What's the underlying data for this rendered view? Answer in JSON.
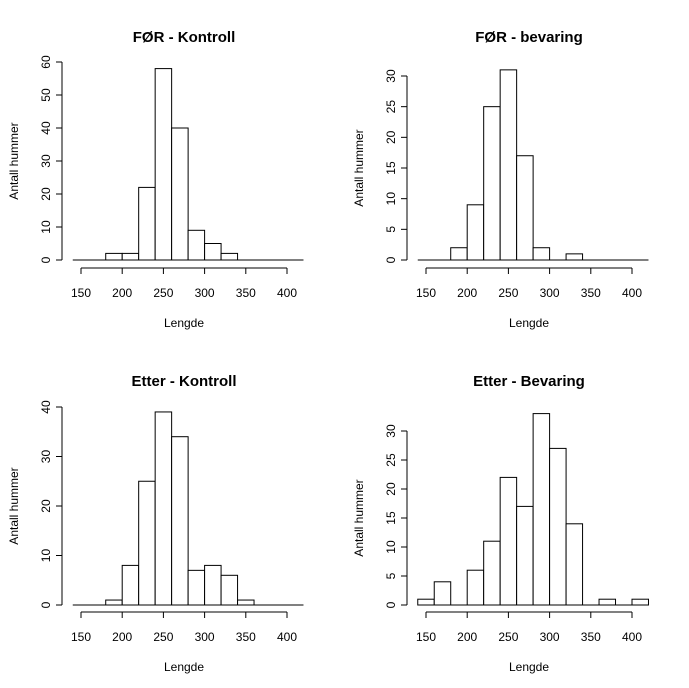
{
  "chart_data": [
    {
      "type": "bar",
      "title": "FØR - Kontroll",
      "xlabel": "Lengde",
      "ylabel": "Antall hummer",
      "bin_edges": [
        180,
        200,
        220,
        240,
        260,
        280,
        300,
        320,
        340
      ],
      "values": [
        2,
        2,
        22,
        58,
        40,
        9,
        5,
        2
      ],
      "xticks": [
        150,
        200,
        250,
        300,
        350,
        400
      ],
      "yticks": [
        0,
        10,
        20,
        30,
        40,
        50,
        60
      ],
      "xlim": [
        140,
        420
      ],
      "ylim": [
        0,
        60
      ]
    },
    {
      "type": "bar",
      "title": "FØR - bevaring",
      "xlabel": "Lengde",
      "ylabel": "Antall hummer",
      "bin_edges": [
        180,
        200,
        220,
        240,
        260,
        280,
        300,
        320,
        340
      ],
      "values": [
        2,
        9,
        25,
        31,
        17,
        2,
        0,
        1
      ],
      "xticks": [
        150,
        200,
        250,
        300,
        350,
        400
      ],
      "yticks": [
        0,
        5,
        10,
        15,
        20,
        25,
        30
      ],
      "xlim": [
        140,
        420
      ],
      "ylim": [
        0,
        30
      ]
    },
    {
      "type": "bar",
      "title": "Etter - Kontroll",
      "xlabel": "Lengde",
      "ylabel": "Antall hummer",
      "bin_edges": [
        180,
        200,
        220,
        240,
        260,
        280,
        300,
        320,
        340,
        360
      ],
      "values": [
        1,
        8,
        25,
        39,
        34,
        7,
        8,
        6,
        1
      ],
      "xticks": [
        150,
        200,
        250,
        300,
        350,
        400
      ],
      "yticks": [
        0,
        10,
        20,
        30,
        40
      ],
      "xlim": [
        140,
        420
      ],
      "ylim": [
        0,
        40
      ]
    },
    {
      "type": "bar",
      "title": "Etter - Bevaring",
      "xlabel": "Lengde",
      "ylabel": "Antall hummer",
      "bin_edges": [
        140,
        160,
        180,
        200,
        220,
        240,
        260,
        280,
        300,
        320,
        340,
        360,
        380,
        400,
        420
      ],
      "values": [
        1,
        4,
        0,
        6,
        11,
        22,
        17,
        33,
        27,
        14,
        0,
        1,
        0,
        1
      ],
      "xticks": [
        150,
        200,
        250,
        300,
        350,
        400
      ],
      "yticks": [
        0,
        5,
        10,
        15,
        20,
        25,
        30
      ],
      "xlim": [
        140,
        420
      ],
      "ylim": [
        0,
        30
      ]
    }
  ]
}
